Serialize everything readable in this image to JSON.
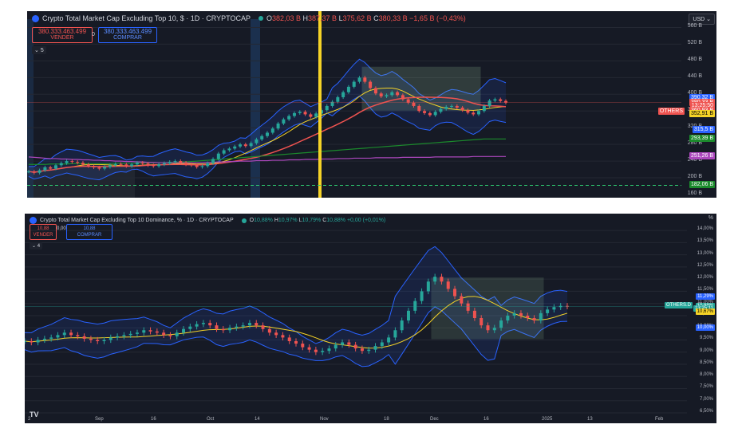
{
  "panel1": {
    "title": "Crypto Total Market Cap Excluding Top 10, $ · 1D · CRYPTOCAP",
    "ohlc": {
      "o": "382,03 B",
      "h": "387,37 B",
      "l": "375,62 B",
      "c": "380,33 B",
      "chg": "−1,65 B (−0,43%)"
    },
    "sell_value": "380.333.463.499",
    "sell_label": "VENDER",
    "spread": "0",
    "buy_value": "380.333.463.499",
    "buy_label": "COMPRAR",
    "indicator_count": "5",
    "currency": "USD",
    "symbol_tag": "OTHERS",
    "y_ticks": [
      "560 B",
      "520 B",
      "480 B",
      "440 B",
      "400 B",
      "360 B",
      "320 B",
      "280 B",
      "240 B",
      "200 B",
      "160 B"
    ],
    "price_tags": [
      {
        "text": "390,32 B",
        "color": "#2962ff"
      },
      {
        "text": "380,33 B",
        "color": "#ef5350"
      },
      {
        "text": "13:25:50",
        "color": "#ef5350"
      },
      {
        "text": "360,93 B",
        "color": "#ef5350"
      },
      {
        "text": "352,91 B",
        "color": "#f5d327"
      },
      {
        "text": "315,5 B",
        "color": "#2962ff"
      },
      {
        "text": "293,39 B",
        "color": "#1b8a2c"
      },
      {
        "text": "251,26 B",
        "color": "#ab47bc"
      },
      {
        "text": "182,06 B",
        "color": "#1b8a2c"
      }
    ]
  },
  "panel2": {
    "title": "Crypto Total Market Cap Excluding Top 10 Dominance, % · 1D · CRYPTOCAP",
    "ohlc": {
      "o": "10,88%",
      "h": "10,97%",
      "l": "10,79%",
      "c": "10,88%",
      "chg": "+0,00 (+0,01%)"
    },
    "sell_value": "10,88",
    "sell_label": "VENDER",
    "spread": "0,00",
    "buy_value": "10,88",
    "buy_label": "COMPRAR",
    "indicator_count": "4",
    "currency": "%",
    "symbol_tag": "OTHERS.D",
    "y_ticks": [
      "14,00%",
      "13,50%",
      "13,00%",
      "12,50%",
      "12,00%",
      "11,50%",
      "11,00%",
      "10,50%",
      "10,00%",
      "9,50%",
      "9,00%",
      "8,50%",
      "8,00%",
      "7,50%",
      "7,00%",
      "6,50%"
    ],
    "price_tags": [
      {
        "text": "11,29%",
        "color": "#2962ff"
      },
      {
        "text": "10,88%",
        "color": "#26a69a"
      },
      {
        "text": "13:25:11",
        "color": "#26a69a"
      },
      {
        "text": "10,67%",
        "color": "#f5d327"
      },
      {
        "text": "10,00%",
        "color": "#2962ff"
      }
    ],
    "x_ticks": [
      "2",
      "Sep",
      "16",
      "Oct",
      "14",
      "Nov",
      "18",
      "Dec",
      "16",
      "2025",
      "13",
      "Feb"
    ],
    "tv_logo": "TV"
  },
  "chart_data": [
    {
      "type": "line",
      "title": "Crypto Total Market Cap Excluding Top 10, $ · 1D · CRYPTOCAP",
      "ylim": [
        160,
        580
      ],
      "y_unit": "B USD",
      "series": [
        {
          "values": [
            215,
            212,
            218,
            225,
            222,
            230,
            235,
            240,
            238,
            236,
            232,
            228,
            225,
            222,
            226,
            230,
            233,
            232,
            228,
            232,
            236,
            234,
            230,
            228,
            232,
            235,
            238,
            240,
            236,
            232,
            230,
            226,
            228,
            235,
            245,
            258,
            266,
            270,
            275,
            280,
            276,
            283,
            292,
            300,
            308,
            318,
            330,
            340,
            348,
            355,
            358,
            352,
            346,
            354,
            362,
            372,
            382,
            393,
            405,
            418,
            430,
            440,
            430,
            415,
            402,
            395,
            398,
            405,
            398,
            388,
            380,
            372,
            360,
            355,
            350,
            358,
            365,
            370,
            372,
            368,
            362,
            356,
            352,
            360,
            372,
            385,
            388,
            384,
            380
          ]
        },
        {
          "values": [
            232,
            232,
            232,
            232,
            233,
            233,
            233,
            233,
            234,
            234,
            234,
            234,
            234,
            234,
            234,
            234,
            235,
            235,
            235,
            235,
            235,
            236,
            236,
            236,
            236,
            236,
            237,
            237,
            238,
            238,
            239,
            240,
            241,
            242,
            243,
            244,
            245,
            246,
            247,
            248,
            249,
            250,
            251,
            252,
            253,
            254,
            255,
            256,
            257,
            258,
            259,
            260,
            261,
            262,
            263,
            264,
            265,
            266,
            267,
            268,
            269,
            270,
            271,
            272,
            273,
            274,
            275,
            276,
            277,
            278,
            279,
            280,
            281,
            282,
            283,
            284,
            285,
            286,
            287,
            288,
            289,
            290,
            291,
            292,
            293,
            293,
            293,
            293,
            293
          ]
        },
        {
          "values": [
            250,
            249,
            248,
            247,
            246,
            246,
            245,
            245,
            244,
            244,
            243,
            243,
            242,
            242,
            241,
            241,
            240,
            240,
            239,
            239,
            238,
            238,
            237,
            237,
            236,
            236,
            236,
            236,
            236,
            236,
            236,
            236,
            236,
            237,
            237,
            238,
            238,
            239,
            239,
            240,
            240,
            240,
            241,
            241,
            241,
            242,
            242,
            242,
            243,
            243,
            243,
            244,
            244,
            244,
            245,
            245,
            245,
            246,
            246,
            246,
            247,
            247,
            247,
            247,
            248,
            248,
            248,
            248,
            248,
            249,
            249,
            249,
            249,
            249,
            249,
            250,
            250,
            250,
            250,
            250,
            250,
            250,
            251,
            251,
            251,
            251,
            251,
            251,
            251
          ]
        }
      ]
    },
    {
      "type": "line",
      "title": "Crypto Total Market Cap Excluding Top 10 Dominance, % · 1D · CRYPTOCAP",
      "ylim": [
        6.5,
        14.3
      ],
      "y_unit": "%",
      "series": [
        {
          "values": [
            9.45,
            9.4,
            9.5,
            9.55,
            9.6,
            9.7,
            9.8,
            9.7,
            9.65,
            9.55,
            9.5,
            9.45,
            9.5,
            9.6,
            9.65,
            9.7,
            9.75,
            9.8,
            9.9,
            9.85,
            9.8,
            9.7,
            9.65,
            9.8,
            9.95,
            10.05,
            10.15,
            10.2,
            10.1,
            9.95,
            9.9,
            10.0,
            10.05,
            10.1,
            10.2,
            10.1,
            9.95,
            9.8,
            9.7,
            9.6,
            9.45,
            9.35,
            9.2,
            9.1,
            9.0,
            9.05,
            9.15,
            9.3,
            9.4,
            9.3,
            9.15,
            9.05,
            9.1,
            9.25,
            9.4,
            9.6,
            9.9,
            10.3,
            10.7,
            11.1,
            11.5,
            11.9,
            12.1,
            11.9,
            11.6,
            11.3,
            11.0,
            10.7,
            10.4,
            10.1,
            9.9,
            10.0,
            10.3,
            10.5,
            10.6,
            10.5,
            10.4,
            10.3,
            10.6,
            10.75,
            10.85,
            10.9,
            10.88
          ]
        }
      ]
    }
  ]
}
